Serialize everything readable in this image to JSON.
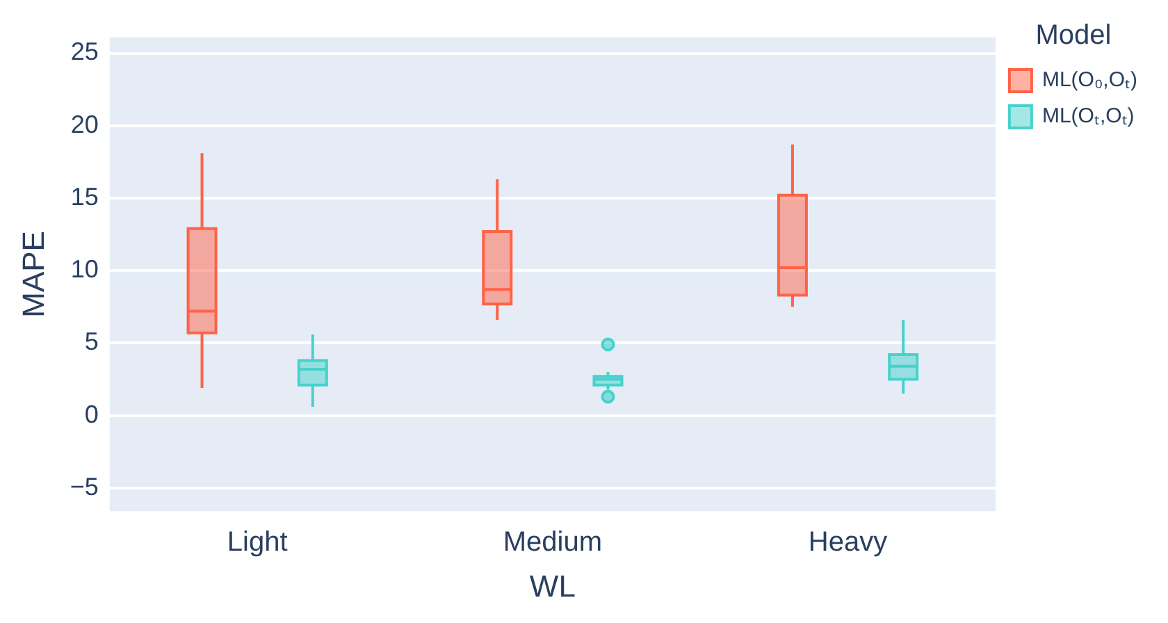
{
  "chart_data": {
    "type": "box",
    "xlabel": "WL",
    "ylabel": "MAPE",
    "legend_title": "Model",
    "categories": [
      "Light",
      "Medium",
      "Heavy"
    ],
    "series": [
      {
        "name": "ML(O₀,Oₜ)",
        "color": "#ff6347",
        "boxes": [
          {
            "low": 1.9,
            "q1": 5.7,
            "median": 7.2,
            "q3": 12.9,
            "high": 18.1
          },
          {
            "low": 6.6,
            "q1": 7.7,
            "median": 8.7,
            "q3": 12.7,
            "high": 16.3
          },
          {
            "low": 7.5,
            "q1": 8.3,
            "median": 10.2,
            "q3": 15.2,
            "high": 18.7
          }
        ]
      },
      {
        "name": "ML(Oₜ,Oₜ)",
        "color": "#48d1cc",
        "boxes": [
          {
            "low": 0.6,
            "q1": 2.1,
            "median": 3.2,
            "q3": 3.8,
            "high": 5.6
          },
          {
            "low": 1.8,
            "q1": 2.1,
            "median": 2.5,
            "q3": 2.7,
            "high": 3.0,
            "outliers": [
              4.9,
              1.3
            ]
          },
          {
            "low": 1.5,
            "q1": 2.5,
            "median": 3.4,
            "q3": 4.2,
            "high": 6.6
          }
        ]
      }
    ],
    "ylim": [
      -6.6,
      26.1
    ],
    "yticks": [
      -5,
      0,
      5,
      10,
      15,
      20,
      25
    ],
    "grid": "y",
    "legend": "top right"
  }
}
